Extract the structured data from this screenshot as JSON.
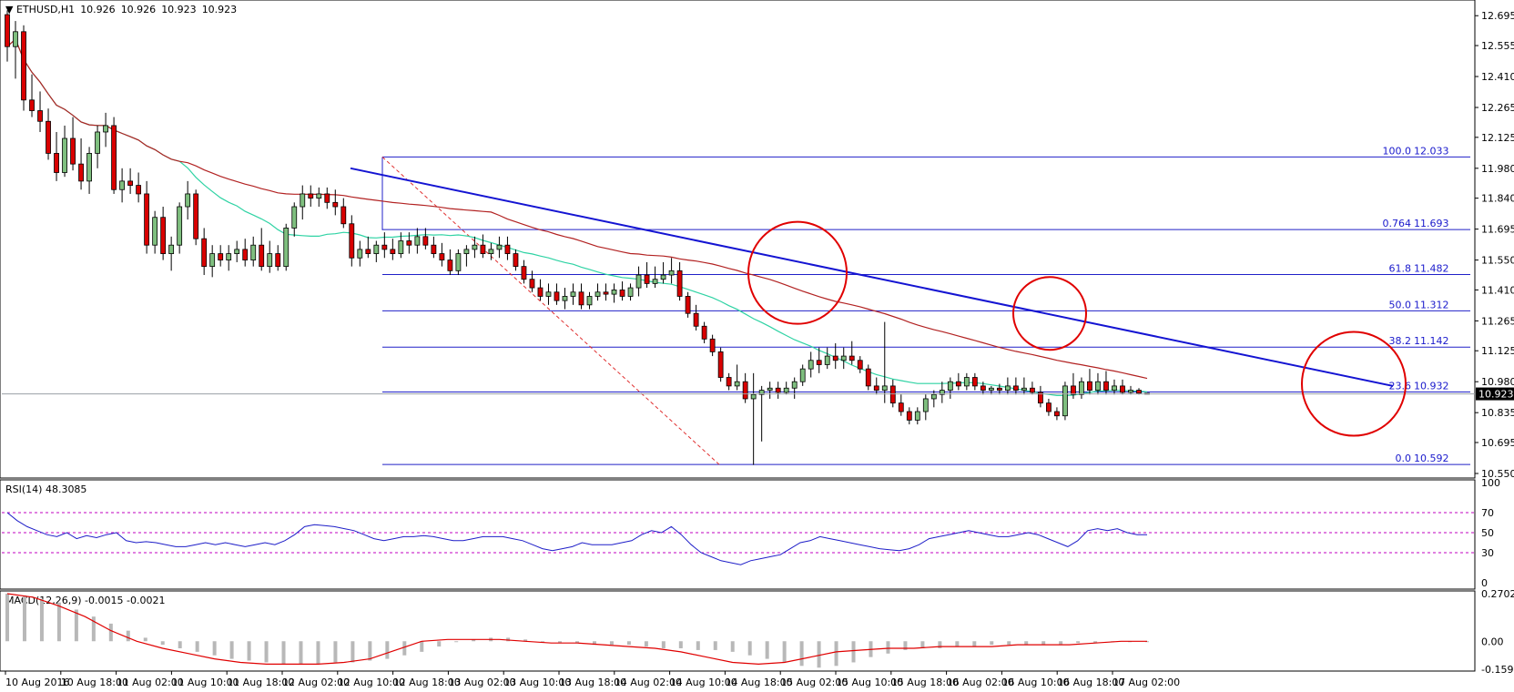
{
  "chart_data": {
    "type": "candlestick",
    "symbol_header": {
      "symbol": "ETHUSD,H1",
      "open": "10.926",
      "high": "10.926",
      "low": "10.923",
      "close": "10.923"
    },
    "current_price": "10.923",
    "price_axis": {
      "ticks": [
        "12.695",
        "12.555",
        "12.410",
        "12.265",
        "12.125",
        "11.980",
        "11.840",
        "11.695",
        "11.550",
        "11.410",
        "11.265",
        "11.125",
        "10.980",
        "10.835",
        "10.695",
        "10.550"
      ],
      "ylim": [
        10.55,
        12.76
      ]
    },
    "time_axis": {
      "labels": [
        "10 Aug 2016",
        "10 Aug 18:00",
        "11 Aug 02:00",
        "11 Aug 10:00",
        "11 Aug 18:00",
        "12 Aug 02:00",
        "12 Aug 10:00",
        "12 Aug 18:00",
        "13 Aug 02:00",
        "13 Aug 10:00",
        "13 Aug 18:00",
        "14 Aug 02:00",
        "14 Aug 10:00",
        "14 Aug 18:00",
        "15 Aug 02:00",
        "15 Aug 10:00",
        "15 Aug 18:00",
        "16 Aug 02:00",
        "16 Aug 10:00",
        "16 Aug 18:00",
        "17 Aug 02:00"
      ]
    },
    "candles_ohlc": [
      [
        12.7,
        12.72,
        12.48,
        12.55
      ],
      [
        12.55,
        12.67,
        12.4,
        12.62
      ],
      [
        12.62,
        12.65,
        12.25,
        12.3
      ],
      [
        12.3,
        12.42,
        12.22,
        12.25
      ],
      [
        12.25,
        12.34,
        12.15,
        12.2
      ],
      [
        12.2,
        12.26,
        12.02,
        12.05
      ],
      [
        12.05,
        12.15,
        11.92,
        11.96
      ],
      [
        11.96,
        12.18,
        11.94,
        12.12
      ],
      [
        12.12,
        12.22,
        11.97,
        12.0
      ],
      [
        12.0,
        12.12,
        11.88,
        11.92
      ],
      [
        11.92,
        12.08,
        11.86,
        12.05
      ],
      [
        12.05,
        12.18,
        11.98,
        12.15
      ],
      [
        12.15,
        12.24,
        12.08,
        12.18
      ],
      [
        12.18,
        12.22,
        11.86,
        11.88
      ],
      [
        11.88,
        11.98,
        11.82,
        11.92
      ],
      [
        11.92,
        11.98,
        11.86,
        11.9
      ],
      [
        11.9,
        11.96,
        11.82,
        11.86
      ],
      [
        11.86,
        11.92,
        11.58,
        11.62
      ],
      [
        11.62,
        11.78,
        11.58,
        11.75
      ],
      [
        11.75,
        11.8,
        11.55,
        11.58
      ],
      [
        11.58,
        11.66,
        11.5,
        11.62
      ],
      [
        11.62,
        11.82,
        11.58,
        11.8
      ],
      [
        11.8,
        11.92,
        11.74,
        11.86
      ],
      [
        11.86,
        11.88,
        11.62,
        11.65
      ],
      [
        11.65,
        11.7,
        11.48,
        11.52
      ],
      [
        11.52,
        11.62,
        11.47,
        11.58
      ],
      [
        11.58,
        11.62,
        11.52,
        11.55
      ],
      [
        11.55,
        11.62,
        11.5,
        11.58
      ],
      [
        11.58,
        11.64,
        11.54,
        11.6
      ],
      [
        11.6,
        11.65,
        11.52,
        11.55
      ],
      [
        11.55,
        11.66,
        11.52,
        11.62
      ],
      [
        11.62,
        11.7,
        11.5,
        11.52
      ],
      [
        11.52,
        11.64,
        11.49,
        11.58
      ],
      [
        11.58,
        11.62,
        11.5,
        11.52
      ],
      [
        11.52,
        11.72,
        11.5,
        11.7
      ],
      [
        11.7,
        11.82,
        11.66,
        11.8
      ],
      [
        11.8,
        11.9,
        11.74,
        11.86
      ],
      [
        11.86,
        11.9,
        11.8,
        11.84
      ],
      [
        11.84,
        11.89,
        11.8,
        11.86
      ],
      [
        11.86,
        11.89,
        11.79,
        11.82
      ],
      [
        11.82,
        11.88,
        11.76,
        11.8
      ],
      [
        11.8,
        11.84,
        11.7,
        11.72
      ],
      [
        11.72,
        11.76,
        11.52,
        11.56
      ],
      [
        11.56,
        11.64,
        11.52,
        11.6
      ],
      [
        11.6,
        11.66,
        11.56,
        11.58
      ],
      [
        11.58,
        11.64,
        11.54,
        11.62
      ],
      [
        11.62,
        11.68,
        11.56,
        11.6
      ],
      [
        11.6,
        11.65,
        11.55,
        11.58
      ],
      [
        11.58,
        11.68,
        11.56,
        11.64
      ],
      [
        11.64,
        11.68,
        11.58,
        11.62
      ],
      [
        11.62,
        11.7,
        11.58,
        11.66
      ],
      [
        11.66,
        11.7,
        11.6,
        11.62
      ],
      [
        11.62,
        11.66,
        11.56,
        11.58
      ],
      [
        11.58,
        11.63,
        11.52,
        11.55
      ],
      [
        11.55,
        11.6,
        11.48,
        11.5
      ],
      [
        11.5,
        11.6,
        11.48,
        11.58
      ],
      [
        11.58,
        11.62,
        11.52,
        11.6
      ],
      [
        11.6,
        11.66,
        11.56,
        11.62
      ],
      [
        11.62,
        11.67,
        11.56,
        11.58
      ],
      [
        11.58,
        11.63,
        11.55,
        11.6
      ],
      [
        11.6,
        11.66,
        11.56,
        11.62
      ],
      [
        11.62,
        11.66,
        11.55,
        11.58
      ],
      [
        11.58,
        11.6,
        11.5,
        11.52
      ],
      [
        11.52,
        11.55,
        11.44,
        11.46
      ],
      [
        11.46,
        11.5,
        11.4,
        11.42
      ],
      [
        11.42,
        11.46,
        11.36,
        11.38
      ],
      [
        11.38,
        11.44,
        11.34,
        11.4
      ],
      [
        11.4,
        11.44,
        11.34,
        11.36
      ],
      [
        11.36,
        11.42,
        11.32,
        11.38
      ],
      [
        11.38,
        11.44,
        11.34,
        11.4
      ],
      [
        11.4,
        11.44,
        11.32,
        11.34
      ],
      [
        11.34,
        11.4,
        11.32,
        11.38
      ],
      [
        11.38,
        11.44,
        11.36,
        11.4
      ],
      [
        11.4,
        11.44,
        11.36,
        11.39
      ],
      [
        11.39,
        11.44,
        11.35,
        11.41
      ],
      [
        11.41,
        11.45,
        11.36,
        11.38
      ],
      [
        11.38,
        11.44,
        11.36,
        11.42
      ],
      [
        11.42,
        11.52,
        11.38,
        11.48
      ],
      [
        11.48,
        11.54,
        11.42,
        11.44
      ],
      [
        11.44,
        11.52,
        11.42,
        11.46
      ],
      [
        11.46,
        11.54,
        11.44,
        11.48
      ],
      [
        11.48,
        11.56,
        11.44,
        11.5
      ],
      [
        11.5,
        11.54,
        11.36,
        11.38
      ],
      [
        11.38,
        11.4,
        11.28,
        11.3
      ],
      [
        11.3,
        11.34,
        11.22,
        11.24
      ],
      [
        11.24,
        11.26,
        11.16,
        11.18
      ],
      [
        11.18,
        11.2,
        11.1,
        11.12
      ],
      [
        11.12,
        11.14,
        10.98,
        11.0
      ],
      [
        11.0,
        11.02,
        10.94,
        10.96
      ],
      [
        10.96,
        11.06,
        10.94,
        10.98
      ],
      [
        10.98,
        11.02,
        10.88,
        10.9
      ],
      [
        10.9,
        11.02,
        10.59,
        10.92
      ],
      [
        10.92,
        10.96,
        10.7,
        10.94
      ],
      [
        10.94,
        10.98,
        10.9,
        10.95
      ],
      [
        10.95,
        10.98,
        10.9,
        10.93
      ],
      [
        10.93,
        10.98,
        10.92,
        10.95
      ],
      [
        10.95,
        11.0,
        10.9,
        10.98
      ],
      [
        10.98,
        11.06,
        10.96,
        11.04
      ],
      [
        11.04,
        11.12,
        11.0,
        11.08
      ],
      [
        11.08,
        11.14,
        11.02,
        11.06
      ],
      [
        11.06,
        11.14,
        11.04,
        11.1
      ],
      [
        11.1,
        11.16,
        11.04,
        11.08
      ],
      [
        11.08,
        11.14,
        11.04,
        11.1
      ],
      [
        11.1,
        11.17,
        11.06,
        11.08
      ],
      [
        11.08,
        11.1,
        11.02,
        11.04
      ],
      [
        11.04,
        11.06,
        10.94,
        10.96
      ],
      [
        10.96,
        11.0,
        10.92,
        10.94
      ],
      [
        10.94,
        11.26,
        10.88,
        10.96
      ],
      [
        10.96,
        10.99,
        10.86,
        10.88
      ],
      [
        10.88,
        10.92,
        10.82,
        10.84
      ],
      [
        10.84,
        10.86,
        10.78,
        10.8
      ],
      [
        10.8,
        10.86,
        10.78,
        10.84
      ],
      [
        10.84,
        10.92,
        10.8,
        10.9
      ],
      [
        10.9,
        10.94,
        10.86,
        10.92
      ],
      [
        10.92,
        10.98,
        10.88,
        10.94
      ],
      [
        10.94,
        11.0,
        10.9,
        10.98
      ],
      [
        10.98,
        11.02,
        10.94,
        10.96
      ],
      [
        10.96,
        11.02,
        10.94,
        11.0
      ],
      [
        11.0,
        11.02,
        10.94,
        10.96
      ],
      [
        10.96,
        10.98,
        10.92,
        10.94
      ],
      [
        10.94,
        10.96,
        10.92,
        10.95
      ],
      [
        10.95,
        10.97,
        10.92,
        10.94
      ],
      [
        10.94,
        11.0,
        10.92,
        10.96
      ],
      [
        10.96,
        11.0,
        10.92,
        10.94
      ],
      [
        10.94,
        11.0,
        10.92,
        10.95
      ],
      [
        10.95,
        10.98,
        10.92,
        10.93
      ],
      [
        10.93,
        10.96,
        10.86,
        10.88
      ],
      [
        10.88,
        10.9,
        10.82,
        10.84
      ],
      [
        10.84,
        10.86,
        10.8,
        10.82
      ],
      [
        10.82,
        10.98,
        10.8,
        10.96
      ],
      [
        10.96,
        11.02,
        10.9,
        10.92
      ],
      [
        10.92,
        11.0,
        10.9,
        10.98
      ],
      [
        10.98,
        11.04,
        10.92,
        10.94
      ],
      [
        10.94,
        11.02,
        10.92,
        10.98
      ],
      [
        10.98,
        11.03,
        10.92,
        10.94
      ],
      [
        10.94,
        10.99,
        10.92,
        10.96
      ],
      [
        10.96,
        10.99,
        10.92,
        10.93
      ],
      [
        10.93,
        10.96,
        10.92,
        10.94
      ],
      [
        10.94,
        10.95,
        10.92,
        10.926
      ],
      [
        10.926,
        10.926,
        10.923,
        10.923
      ]
    ],
    "fibonacci": {
      "levels": [
        {
          "label": "100.0",
          "value": "12.033"
        },
        {
          "label": "0.764",
          "value": "11.693"
        },
        {
          "label": "61.8",
          "value": "11.482"
        },
        {
          "label": "50.0",
          "value": "11.312"
        },
        {
          "label": "38.2",
          "value": "11.142"
        },
        {
          "label": "23.6",
          "value": "10.932"
        },
        {
          "label": "0.0",
          "value": "10.592"
        }
      ]
    },
    "moving_average_fast_color": "#2fd3a4",
    "moving_average_slow_color": "#b22222",
    "trend_line_color": "#1414d2",
    "circle_color": "#e00000",
    "rsi": {
      "title": "RSI(14) 48.3085",
      "ticks": [
        "100",
        "70",
        "50",
        "30",
        "0"
      ],
      "levels": [
        70,
        50,
        30
      ],
      "values": [
        70,
        62,
        56,
        52,
        48,
        46,
        50,
        44,
        47,
        45,
        48,
        50,
        42,
        40,
        41,
        40,
        38,
        36,
        36,
        38,
        40,
        38,
        40,
        38,
        36,
        38,
        40,
        38,
        42,
        48,
        56,
        58,
        57,
        56,
        54,
        52,
        48,
        44,
        42,
        44,
        46,
        46,
        47,
        46,
        44,
        42,
        42,
        44,
        46,
        46,
        46,
        44,
        42,
        38,
        34,
        32,
        34,
        36,
        40,
        38,
        38,
        38,
        40,
        42,
        48,
        52,
        50,
        56,
        48,
        38,
        30,
        26,
        22,
        20,
        18,
        22,
        24,
        26,
        28,
        34,
        40,
        42,
        46,
        44,
        42,
        40,
        38,
        36,
        34,
        33,
        32,
        34,
        38,
        44,
        46,
        48,
        50,
        52,
        50,
        48,
        46,
        46,
        48,
        50,
        48,
        44,
        40,
        36,
        42,
        52,
        54,
        52,
        54,
        50,
        48,
        48
      ]
    },
    "macd": {
      "title": "MACD(12,26,9) -0.0015 -0.0021",
      "ticks": [
        "0.2702",
        "0.00",
        "-0.159"
      ],
      "histogram": [
        0.27,
        0.26,
        0.24,
        0.22,
        0.18,
        0.14,
        0.1,
        0.06,
        0.02,
        -0.02,
        -0.04,
        -0.06,
        -0.08,
        -0.1,
        -0.11,
        -0.12,
        -0.13,
        -0.13,
        -0.13,
        -0.12,
        -0.12,
        -0.11,
        -0.1,
        -0.08,
        -0.06,
        -0.03,
        0.0,
        0.01,
        0.02,
        0.02,
        0.01,
        0.0,
        -0.01,
        -0.01,
        -0.02,
        -0.02,
        -0.02,
        -0.03,
        -0.04,
        -0.04,
        -0.05,
        -0.05,
        -0.06,
        -0.08,
        -0.1,
        -0.12,
        -0.14,
        -0.15,
        -0.14,
        -0.12,
        -0.09,
        -0.07,
        -0.05,
        -0.04,
        -0.04,
        -0.03,
        -0.03,
        -0.02,
        -0.02,
        -0.02,
        -0.02,
        -0.02,
        -0.01,
        -0.01,
        0.0,
        0.0,
        0.0
      ],
      "signal": [
        0.27,
        0.25,
        0.2,
        0.14,
        0.06,
        0.0,
        -0.04,
        -0.07,
        -0.1,
        -0.12,
        -0.13,
        -0.13,
        -0.13,
        -0.12,
        -0.1,
        -0.05,
        0.0,
        0.01,
        0.01,
        0.01,
        0.0,
        -0.01,
        -0.01,
        -0.02,
        -0.03,
        -0.04,
        -0.06,
        -0.09,
        -0.12,
        -0.13,
        -0.12,
        -0.09,
        -0.06,
        -0.05,
        -0.04,
        -0.04,
        -0.03,
        -0.03,
        -0.03,
        -0.02,
        -0.02,
        -0.02,
        -0.01,
        0.0,
        0.0
      ]
    }
  }
}
